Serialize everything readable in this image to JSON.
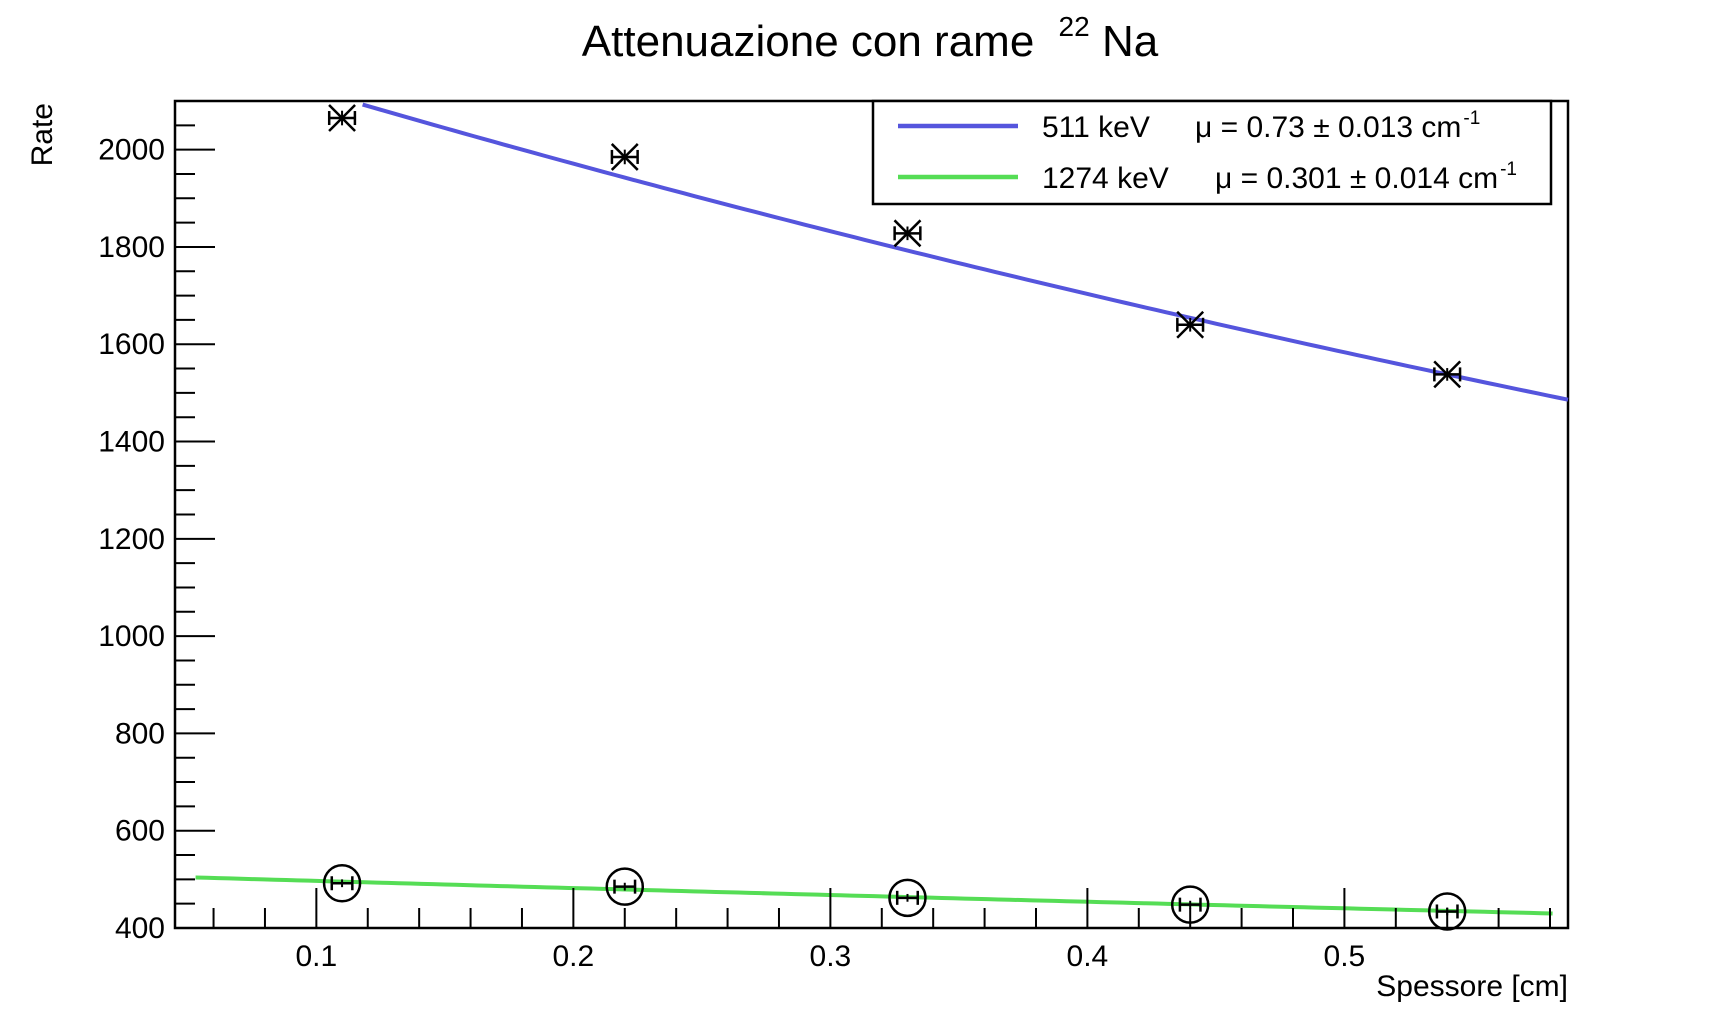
{
  "chart_data": {
    "type": "scatter",
    "title": "Attenuazione con rame",
    "title_isotope_mass": "22",
    "title_isotope_symbol": "Na",
    "xlabel": "Spessore [cm]",
    "ylabel": "Rate",
    "xlim": [
      0.045,
      0.587
    ],
    "ylim": [
      400,
      2100
    ],
    "x_major_ticks": [
      0.1,
      0.2,
      0.3,
      0.4,
      0.5
    ],
    "x_tick_labels": [
      "0.1",
      "0.2",
      "0.3",
      "0.4",
      "0.5"
    ],
    "y_major_ticks": [
      400,
      600,
      800,
      1000,
      1200,
      1400,
      1600,
      1800,
      2000
    ],
    "y_tick_labels": [
      "400",
      "600",
      "800",
      "1000",
      "1200",
      "1400",
      "1600",
      "1800",
      "2000"
    ],
    "grid": false,
    "legend_position": "top-right",
    "series": [
      {
        "name": "511 keV",
        "marker": "x",
        "color": "#000000",
        "points": [
          {
            "x": 0.11,
            "y": 2065,
            "xerr": 0.005,
            "yerr": 15
          },
          {
            "x": 0.22,
            "y": 1985,
            "xerr": 0.005,
            "yerr": 15
          },
          {
            "x": 0.33,
            "y": 1828,
            "xerr": 0.005,
            "yerr": 14
          },
          {
            "x": 0.44,
            "y": 1640,
            "xerr": 0.005,
            "yerr": 14
          },
          {
            "x": 0.54,
            "y": 1538,
            "xerr": 0.005,
            "yerr": 13
          }
        ],
        "fit": {
          "label_energy": "511 keV",
          "label_mu": "μ = 0.73 ± 0.013 cm",
          "label_mu_exp": "-1",
          "color": "#5555dd",
          "A": 2281,
          "mu": 0.73,
          "x_range": [
            0.118,
            0.587
          ]
        }
      },
      {
        "name": "1274 keV",
        "marker": "circle",
        "color": "#000000",
        "points": [
          {
            "x": 0.11,
            "y": 492,
            "xerr": 0.004,
            "yerr": 8
          },
          {
            "x": 0.22,
            "y": 485,
            "xerr": 0.004,
            "yerr": 8
          },
          {
            "x": 0.33,
            "y": 462,
            "xerr": 0.004,
            "yerr": 8
          },
          {
            "x": 0.44,
            "y": 448,
            "xerr": 0.004,
            "yerr": 8
          },
          {
            "x": 0.54,
            "y": 434,
            "xerr": 0.004,
            "yerr": 8
          }
        ],
        "fit": {
          "label_energy": "1274 keV",
          "label_mu": "μ = 0.301 ± 0.014 cm",
          "label_mu_exp": "-1",
          "color": "#55dd55",
          "A": 512,
          "mu": 0.301,
          "x_range": [
            0.053,
            0.581
          ]
        }
      }
    ]
  }
}
